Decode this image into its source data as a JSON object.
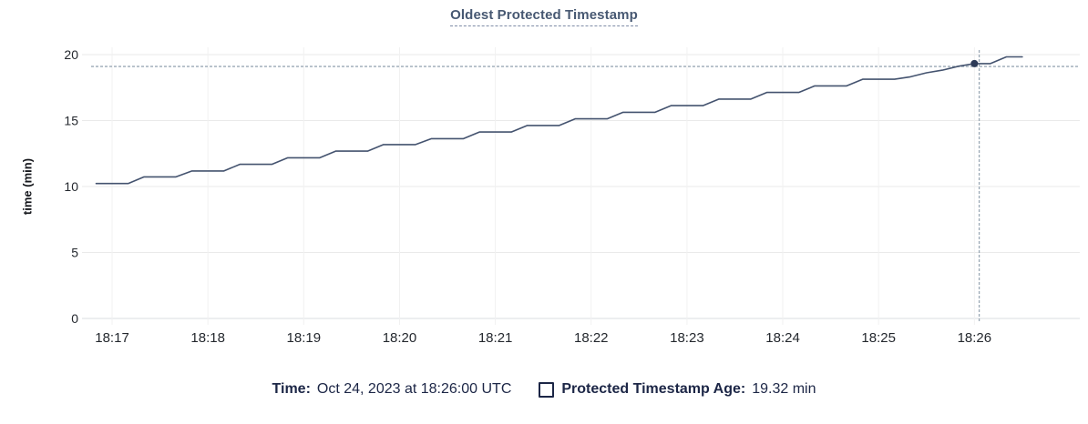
{
  "chart_title": "Oldest Protected Timestamp",
  "legend": {
    "time_label": "Time:",
    "time_value": "Oct 24, 2023 at 18:26:00 UTC",
    "series_label": "Protected Timestamp Age:",
    "series_value": "19.32 min"
  },
  "colors": {
    "line": "#44536f",
    "dot": "#2c3a57",
    "crosshair": "#9aa8b5",
    "grid_h": "#eaeaea",
    "grid_v": "#f1f1f1",
    "baseline": "#d9dde2",
    "title": "#475872",
    "legend_text": "#1c2646"
  },
  "chart_data": {
    "type": "line",
    "title": "Oldest Protected Timestamp",
    "xlabel": "",
    "ylabel": "time (min)",
    "ylim": [
      0,
      20
    ],
    "yticks": [
      0,
      5,
      10,
      15,
      20
    ],
    "xticks": [
      "18:17",
      "18:18",
      "18:19",
      "18:20",
      "18:21",
      "18:22",
      "18:23",
      "18:24",
      "18:25",
      "18:26"
    ],
    "x_domain": [
      "18:16:44",
      "18:27:06"
    ],
    "grid": true,
    "legend_position": "bottom",
    "series": [
      {
        "name": "Protected Timestamp Age",
        "unit": "min",
        "color": "#44536f",
        "points": [
          [
            "18:16:50",
            10.23
          ],
          [
            "18:17:00",
            10.23
          ],
          [
            "18:17:10",
            10.23
          ],
          [
            "18:17:20",
            10.73
          ],
          [
            "18:17:30",
            10.73
          ],
          [
            "18:17:40",
            10.73
          ],
          [
            "18:17:50",
            11.18
          ],
          [
            "18:18:00",
            11.18
          ],
          [
            "18:18:10",
            11.18
          ],
          [
            "18:18:20",
            11.68
          ],
          [
            "18:18:30",
            11.68
          ],
          [
            "18:18:40",
            11.68
          ],
          [
            "18:18:50",
            12.18
          ],
          [
            "18:19:00",
            12.18
          ],
          [
            "18:19:10",
            12.18
          ],
          [
            "18:19:20",
            12.68
          ],
          [
            "18:19:30",
            12.68
          ],
          [
            "18:19:40",
            12.68
          ],
          [
            "18:19:50",
            13.18
          ],
          [
            "18:20:00",
            13.18
          ],
          [
            "18:20:10",
            13.18
          ],
          [
            "18:20:20",
            13.63
          ],
          [
            "18:20:30",
            13.63
          ],
          [
            "18:20:40",
            13.63
          ],
          [
            "18:20:50",
            14.13
          ],
          [
            "18:21:00",
            14.13
          ],
          [
            "18:21:10",
            14.13
          ],
          [
            "18:21:20",
            14.63
          ],
          [
            "18:21:30",
            14.63
          ],
          [
            "18:21:40",
            14.63
          ],
          [
            "18:21:50",
            15.13
          ],
          [
            "18:22:00",
            15.13
          ],
          [
            "18:22:10",
            15.13
          ],
          [
            "18:22:20",
            15.63
          ],
          [
            "18:22:30",
            15.63
          ],
          [
            "18:22:40",
            15.63
          ],
          [
            "18:22:50",
            16.13
          ],
          [
            "18:23:00",
            16.13
          ],
          [
            "18:23:10",
            16.13
          ],
          [
            "18:23:20",
            16.63
          ],
          [
            "18:23:30",
            16.63
          ],
          [
            "18:23:40",
            16.63
          ],
          [
            "18:23:50",
            17.13
          ],
          [
            "18:24:00",
            17.13
          ],
          [
            "18:24:10",
            17.13
          ],
          [
            "18:24:20",
            17.63
          ],
          [
            "18:24:30",
            17.63
          ],
          [
            "18:24:40",
            17.63
          ],
          [
            "18:24:50",
            18.13
          ],
          [
            "18:25:00",
            18.13
          ],
          [
            "18:25:10",
            18.13
          ],
          [
            "18:25:20",
            18.32
          ],
          [
            "18:25:30",
            18.62
          ],
          [
            "18:25:40",
            18.82
          ],
          [
            "18:25:50",
            19.12
          ],
          [
            "18:26:00",
            19.32
          ],
          [
            "18:26:10",
            19.32
          ],
          [
            "18:26:20",
            19.83
          ],
          [
            "18:26:30",
            19.83
          ]
        ]
      }
    ],
    "highlight": {
      "x": "18:26:00",
      "y": 19.32,
      "crosshair_x": "18:26:03",
      "crosshair_y": 19.1
    }
  }
}
